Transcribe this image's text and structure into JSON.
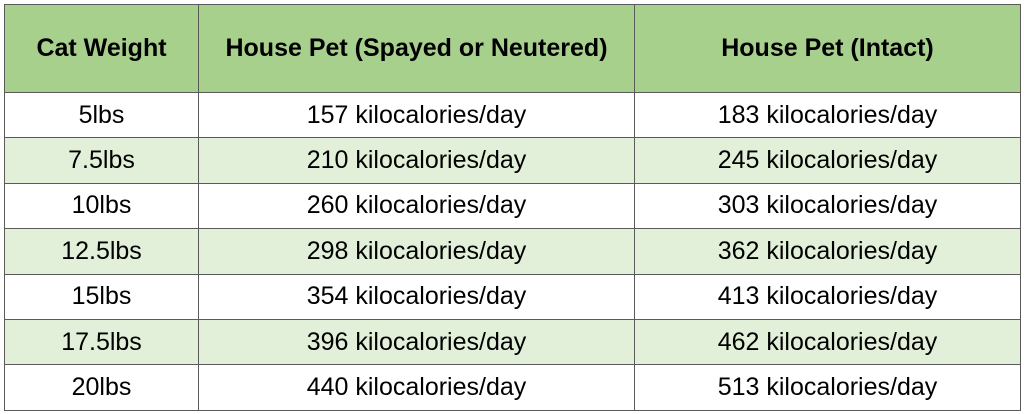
{
  "table": {
    "headers": [
      "Cat Weight",
      "House Pet (Spayed or Neutered)",
      "House Pet (Intact)"
    ],
    "rows": [
      [
        "5lbs",
        "157 kilocalories/day",
        "183 kilocalories/day"
      ],
      [
        "7.5lbs",
        "210 kilocalories/day",
        "245 kilocalories/day"
      ],
      [
        "10lbs",
        "260 kilocalories/day",
        "303 kilocalories/day"
      ],
      [
        "12.5lbs",
        "298 kilocalories/day",
        "362 kilocalories/day"
      ],
      [
        "15lbs",
        "354 kilocalories/day",
        "413 kilocalories/day"
      ],
      [
        "17.5lbs",
        "396 kilocalories/day",
        "462 kilocalories/day"
      ],
      [
        "20lbs",
        "440 kilocalories/day",
        "513 kilocalories/day"
      ]
    ]
  },
  "colors": {
    "header_background": "#a8d08d",
    "band_light": "#ffffff",
    "band_green": "#e2efd9",
    "border": "#5a5a5a"
  }
}
